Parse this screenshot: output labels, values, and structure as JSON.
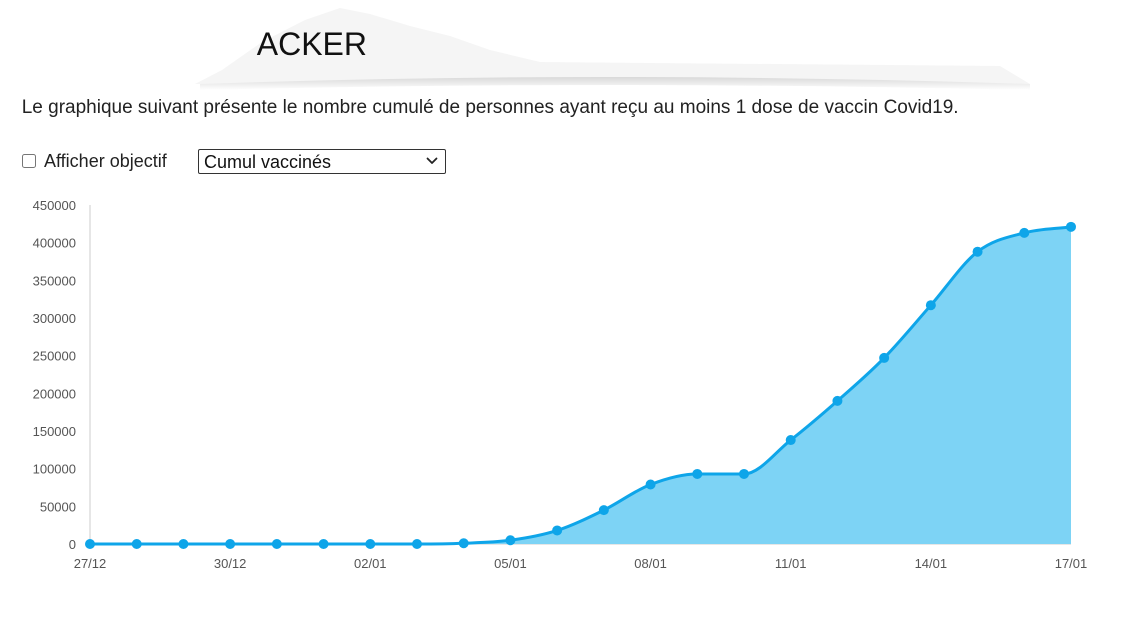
{
  "header": {
    "title": "ACKER"
  },
  "description": "Le graphique suivant présente le nombre cumulé de personnes ayant reçu au moins 1 dose de vaccin Covid19.",
  "controls": {
    "objective_label": "Afficher objectif",
    "objective_checked": false,
    "metric_select": {
      "selected": "Cumul vaccinés"
    }
  },
  "colors": {
    "line": "#0ea5e9",
    "area": "#7dd3f5",
    "point": "#0ea5e9",
    "axis": "#cccccc",
    "banner": "#f5f5f5"
  },
  "icons": {
    "select_arrow": "chevron-down-icon"
  },
  "chart_data": {
    "type": "area",
    "title": "",
    "xlabel": "",
    "ylabel": "",
    "ylim": [
      0,
      450000
    ],
    "y_ticks": [
      0,
      50000,
      100000,
      150000,
      200000,
      250000,
      300000,
      350000,
      400000,
      450000
    ],
    "x_tick_labels": [
      "27/12",
      "30/12",
      "02/01",
      "05/01",
      "08/01",
      "11/01",
      "14/01",
      "17/01"
    ],
    "x": [
      "27/12",
      "28/12",
      "29/12",
      "30/12",
      "31/12",
      "01/01",
      "02/01",
      "03/01",
      "04/01",
      "05/01",
      "06/01",
      "07/01",
      "08/01",
      "09/01",
      "10/01",
      "11/01",
      "12/01",
      "13/01",
      "14/01",
      "15/01",
      "16/01",
      "17/01"
    ],
    "series": [
      {
        "values": [
          0,
          0,
          0,
          0,
          0,
          0,
          0,
          0,
          1000,
          5000,
          18000,
          45000,
          79000,
          93000,
          93000,
          138000,
          190000,
          247000,
          317000,
          388000,
          413000,
          421000
        ]
      }
    ],
    "grid": false,
    "legend": "none"
  }
}
